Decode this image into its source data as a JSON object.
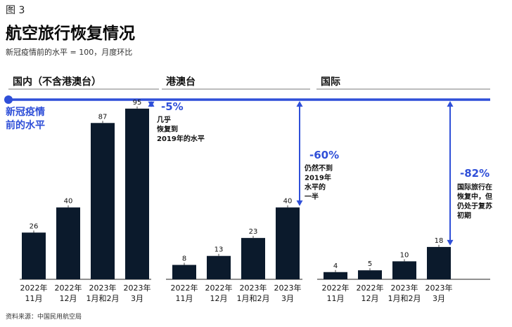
{
  "figure_label": "图 3",
  "title": "航空旅行恢复情况",
  "subtitle": "新冠疫情前的水平 = 100，月度环比",
  "source": "资料来源：中国民用航空局",
  "colors": {
    "bar": "#0b1a2c",
    "accent": "#2f4fd8",
    "divider": "#7a7a7a"
  },
  "chart_data": {
    "type": "bar",
    "reference_line": {
      "value": 100,
      "label": [
        "新冠疫情",
        "前的水平"
      ]
    },
    "panels": [
      {
        "name": "国内（不含港澳台）",
        "categories": [
          [
            "2022年",
            "11月"
          ],
          [
            "2022年",
            "12月"
          ],
          [
            "2023年",
            "1月和2月"
          ],
          [
            "2023年",
            "3月"
          ]
        ],
        "values": [
          26,
          40,
          87,
          95
        ],
        "gap_annotation": {
          "pct": "-5%",
          "note": [
            "几乎",
            "恢复到",
            "2019年的水平"
          ]
        }
      },
      {
        "name": "港澳台",
        "categories": [
          [
            "2022年",
            "11月"
          ],
          [
            "2022年",
            "12月"
          ],
          [
            "2023年",
            "1月和2月"
          ],
          [
            "2023年",
            "3月"
          ]
        ],
        "values": [
          8,
          13,
          23,
          40
        ],
        "gap_annotation": {
          "pct": "-60%",
          "note": [
            "仍然不到",
            "2019年",
            "水平的",
            "一半"
          ]
        }
      },
      {
        "name": "国际",
        "categories": [
          [
            "2022年",
            "11月"
          ],
          [
            "2022年",
            "12月"
          ],
          [
            "2023年",
            "1月和2月"
          ],
          [
            "2023年",
            "3月"
          ]
        ],
        "values": [
          4,
          5,
          10,
          18
        ],
        "gap_annotation": {
          "pct": "-82%",
          "note": [
            "国际旅行在",
            "恢复中，但",
            "仍处于复苏",
            "初期"
          ]
        }
      }
    ],
    "ylim": [
      0,
      100
    ]
  }
}
